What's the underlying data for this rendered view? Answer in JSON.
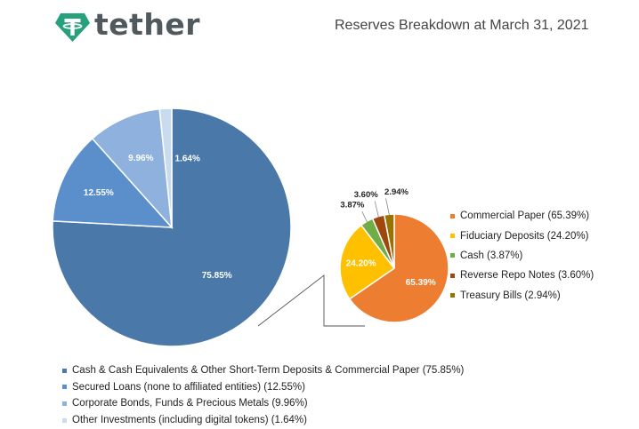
{
  "header": {
    "logo_word": "tether",
    "title": "Reserves Breakdown at March 31, 2021"
  },
  "colors": {
    "logo_green": "#26a17b",
    "line": "#555555"
  },
  "chart_data": [
    {
      "type": "pie",
      "title": "",
      "slices": [
        {
          "label": "Cash & Cash Equivalents & Other Short-Term Deposits & Commercial Paper (75.85%)",
          "value": 75.85,
          "data_label": "75.85%",
          "color": "#4a78a8"
        },
        {
          "label": "Secured Loans (none to affiliated entities) (12.55%)",
          "value": 12.55,
          "data_label": "12.55%",
          "color": "#5a8fcc"
        },
        {
          "label": "Corporate Bonds, Funds & Precious Metals (9.96%)",
          "value": 9.96,
          "data_label": "9.96%",
          "color": "#8eb2dd"
        },
        {
          "label": "Other Investments (including digital tokens) (1.64%)",
          "value": 1.64,
          "data_label": "1.64%",
          "color": "#c9dbee"
        }
      ],
      "legend_placement": "bottom"
    },
    {
      "type": "pie",
      "title": "",
      "slices": [
        {
          "label": "Commercial Paper (65.39%)",
          "value": 65.39,
          "data_label": "65.39%",
          "color": "#ed7d31"
        },
        {
          "label": "Fiduciary Deposits (24.20%)",
          "value": 24.2,
          "data_label": "24.20%",
          "color": "#ffc000"
        },
        {
          "label": "Cash (3.87%)",
          "value": 3.87,
          "data_label": "3.87%",
          "color": "#70ad47"
        },
        {
          "label": "Reverse Repo Notes (3.60%)",
          "value": 3.6,
          "data_label": "3.60%",
          "color": "#9e480e"
        },
        {
          "label": "Treasury Bills (2.94%)",
          "value": 2.94,
          "data_label": "2.94%",
          "color": "#997300"
        }
      ],
      "legend_placement": "right"
    }
  ]
}
